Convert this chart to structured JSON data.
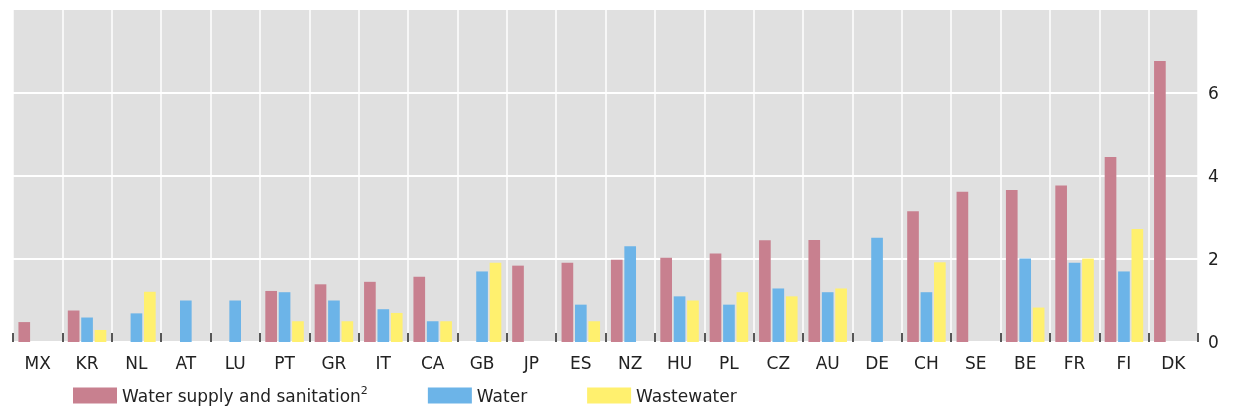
{
  "chart_data": {
    "type": "bar",
    "categories": [
      "MX",
      "KR",
      "NL",
      "AT",
      "LU",
      "PT",
      "GR",
      "IT",
      "CA",
      "GB",
      "JP",
      "ES",
      "NZ",
      "HU",
      "PL",
      "CZ",
      "AU",
      "DE",
      "CH",
      "SE",
      "BE",
      "FR",
      "FI",
      "DK"
    ],
    "series": [
      {
        "name": "Water supply and sanitation$^{2}$",
        "color": "#c8808f",
        "values": [
          0.48,
          0.76,
          null,
          null,
          null,
          1.23,
          1.39,
          1.45,
          1.57,
          null,
          1.84,
          1.91,
          1.98,
          2.03,
          2.13,
          2.45,
          2.46,
          null,
          3.15,
          3.62,
          3.66,
          3.77,
          4.46,
          6.77
        ]
      },
      {
        "name": "Water",
        "color": "#6cb4e8",
        "values": [
          null,
          0.59,
          0.69,
          1.0,
          1.0,
          1.2,
          1.0,
          0.79,
          0.5,
          1.7,
          null,
          0.9,
          2.31,
          1.1,
          0.9,
          1.29,
          1.2,
          2.51,
          1.2,
          null,
          2.01,
          1.91,
          1.7,
          null
        ]
      },
      {
        "name": "Wastewater",
        "color": "#fff06e",
        "values": [
          null,
          0.29,
          1.21,
          null,
          null,
          0.5,
          0.5,
          0.7,
          0.5,
          1.91,
          null,
          0.5,
          null,
          1.0,
          1.2,
          1.1,
          1.29,
          null,
          1.92,
          null,
          0.83,
          2.01,
          2.72,
          null
        ]
      }
    ],
    "ylim": [
      0,
      8
    ],
    "yticks": [
      0,
      2,
      4,
      6
    ],
    "grid": true,
    "legend": "bottom left"
  }
}
